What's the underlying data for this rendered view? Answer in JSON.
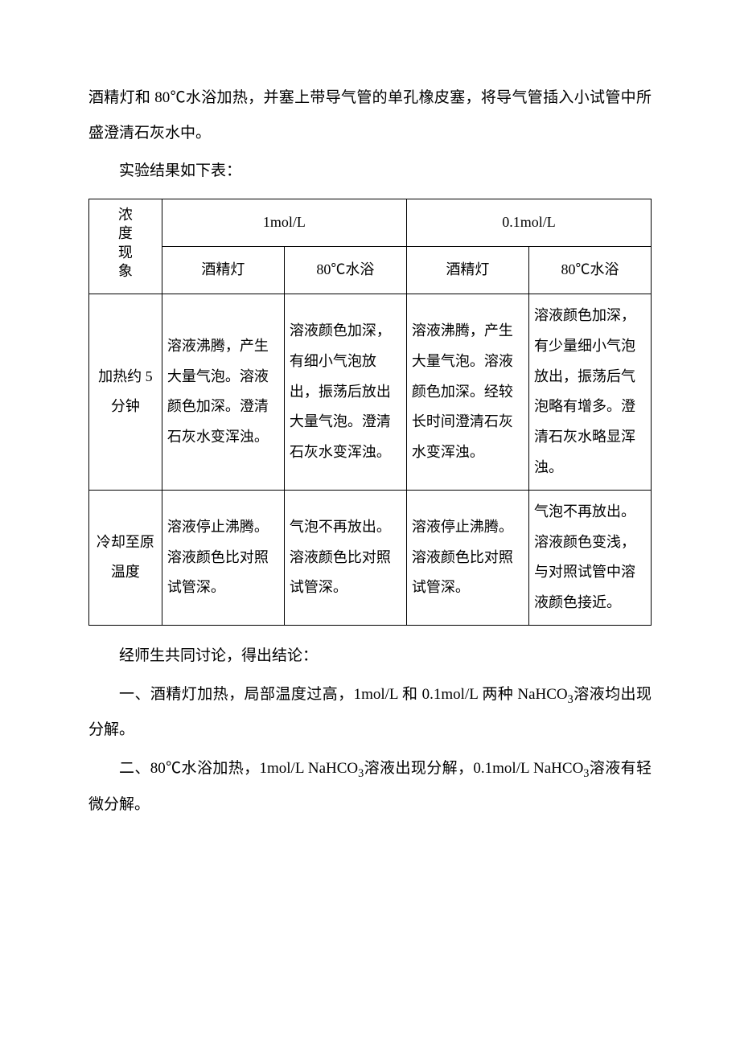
{
  "intro_paragraph_1": "酒精灯和 80℃水浴加热，并塞上带导气管的单孔橡皮塞，将导气管插入小试管中所盛澄清石灰水中。",
  "intro_paragraph_2": "实验结果如下表：",
  "table": {
    "row_header_label": "浓度现象",
    "col_group_1": "1mol/L",
    "col_group_2": "0.1mol/L",
    "subcol_1": "酒精灯",
    "subcol_2": "80℃水浴",
    "subcol_3": "酒精灯",
    "subcol_4": "80℃水浴",
    "row1_label": "加热约 5 分钟",
    "row1_cell1": "溶液沸腾，产生大量气泡。溶液颜色加深。澄清石灰水变浑浊。",
    "row1_cell2": "溶液颜色加深，有细小气泡放出，振荡后放出大量气泡。澄清石灰水变浑浊。",
    "row1_cell3": "溶液沸腾，产生大量气泡。溶液颜色加深。经较长时间澄清石灰水变浑浊。",
    "row1_cell4": "溶液颜色加深，有少量细小气泡放出，振荡后气泡略有增多。澄清石灰水略显浑浊。",
    "row2_label": "冷却至原温度",
    "row2_cell1": "溶液停止沸腾。溶液颜色比对照试管深。",
    "row2_cell2": "气泡不再放出。溶液颜色比对照试管深。",
    "row2_cell3": "溶液停止沸腾。溶液颜色比对照试管深。",
    "row2_cell4": "气泡不再放出。溶液颜色变浅，与对照试管中溶液颜色接近。"
  },
  "conclusion_intro": "经师生共同讨论，得出结论：",
  "conclusion_1_prefix": "一、酒精灯加热，局部温度过高，1mol/L 和 0.1mol/L 两种 NaHCO",
  "conclusion_1_suffix": "溶液均出现分解。",
  "conclusion_2_prefix": "二、80℃水浴加热，1mol/L NaHCO",
  "conclusion_2_mid": "溶液出现分解，0.1mol/L NaHCO",
  "conclusion_2_suffix": "溶液有轻微分解。",
  "subscript_3": "3"
}
